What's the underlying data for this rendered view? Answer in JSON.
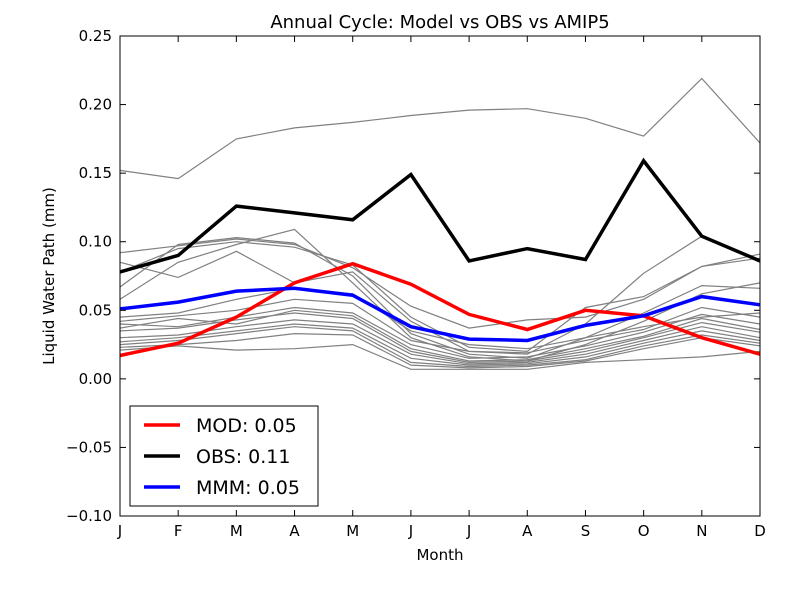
{
  "chart_data": {
    "type": "line",
    "title": "Annual Cycle: Model vs OBS vs AMIP5",
    "xlabel": "Month",
    "ylabel": "Liquid Water Path (mm)",
    "categories": [
      "J",
      "F",
      "M",
      "A",
      "M",
      "J",
      "J",
      "A",
      "S",
      "O",
      "N",
      "D"
    ],
    "ylim": [
      -0.1,
      0.25
    ],
    "yticks": [
      "−0.10",
      "−0.05",
      "0.00",
      "0.05",
      "0.10",
      "0.15",
      "0.20",
      "0.25"
    ],
    "ytick_values": [
      -0.1,
      -0.05,
      0.0,
      0.05,
      0.1,
      0.15,
      0.2,
      0.25
    ],
    "grid": false,
    "legend_position": "lower-left",
    "background_series": [
      {
        "color": "#808080",
        "values": [
          0.152,
          0.146,
          0.175,
          0.183,
          0.187,
          0.192,
          0.196,
          0.197,
          0.19,
          0.177,
          0.219,
          0.172
        ]
      },
      {
        "color": "#808080",
        "values": [
          0.092,
          0.097,
          0.102,
          0.098,
          0.081,
          0.053,
          0.037,
          0.043,
          0.045,
          0.058,
          0.082,
          0.091
        ]
      },
      {
        "color": "#808080",
        "values": [
          0.085,
          0.074,
          0.093,
          0.07,
          0.078,
          0.042,
          0.02,
          0.018,
          0.04,
          0.077,
          0.104,
          0.085
        ]
      },
      {
        "color": "#808080",
        "values": [
          0.078,
          0.095,
          0.1,
          0.096,
          0.083,
          0.045,
          0.023,
          0.02,
          0.052,
          0.06,
          0.082,
          0.088
        ]
      },
      {
        "color": "#808080",
        "values": [
          0.067,
          0.098,
          0.103,
          0.099,
          0.075,
          0.033,
          0.018,
          0.015,
          0.03,
          0.048,
          0.068,
          0.066
        ]
      },
      {
        "color": "#808080",
        "values": [
          0.058,
          0.085,
          0.098,
          0.109,
          0.07,
          0.03,
          0.016,
          0.013,
          0.025,
          0.042,
          0.062,
          0.07
        ]
      },
      {
        "color": "#808080",
        "values": [
          0.045,
          0.048,
          0.058,
          0.066,
          0.062,
          0.035,
          0.025,
          0.022,
          0.03,
          0.038,
          0.045,
          0.048
        ]
      },
      {
        "color": "#808080",
        "values": [
          0.042,
          0.046,
          0.05,
          0.058,
          0.055,
          0.028,
          0.02,
          0.019,
          0.028,
          0.036,
          0.052,
          0.045
        ]
      },
      {
        "color": "#808080",
        "values": [
          0.04,
          0.038,
          0.045,
          0.052,
          0.048,
          0.025,
          0.015,
          0.016,
          0.024,
          0.034,
          0.047,
          0.04
        ]
      },
      {
        "color": "#808080",
        "values": [
          0.037,
          0.044,
          0.04,
          0.05,
          0.046,
          0.022,
          0.013,
          0.014,
          0.022,
          0.031,
          0.044,
          0.036
        ]
      },
      {
        "color": "#808080",
        "values": [
          0.035,
          0.037,
          0.043,
          0.048,
          0.044,
          0.02,
          0.012,
          0.013,
          0.02,
          0.03,
          0.041,
          0.034
        ]
      },
      {
        "color": "#808080",
        "values": [
          0.03,
          0.032,
          0.038,
          0.043,
          0.04,
          0.018,
          0.011,
          0.012,
          0.018,
          0.028,
          0.038,
          0.03
        ]
      },
      {
        "color": "#808080",
        "values": [
          0.027,
          0.03,
          0.035,
          0.04,
          0.037,
          0.015,
          0.01,
          0.011,
          0.016,
          0.026,
          0.035,
          0.028
        ]
      },
      {
        "color": "#808080",
        "values": [
          0.025,
          0.028,
          0.033,
          0.038,
          0.035,
          0.012,
          0.009,
          0.01,
          0.014,
          0.024,
          0.032,
          0.026
        ]
      },
      {
        "color": "#808080",
        "values": [
          0.023,
          0.025,
          0.028,
          0.033,
          0.032,
          0.01,
          0.008,
          0.009,
          0.013,
          0.022,
          0.03,
          0.024
        ]
      },
      {
        "color": "#808080",
        "values": [
          0.021,
          0.024,
          0.021,
          0.022,
          0.025,
          0.007,
          0.007,
          0.007,
          0.012,
          0.014,
          0.016,
          0.02
        ]
      }
    ],
    "series": [
      {
        "name": "MOD",
        "legend_label": "MOD: 0.05",
        "color": "#ff0000",
        "values": [
          0.017,
          0.026,
          0.045,
          0.07,
          0.084,
          0.069,
          0.047,
          0.036,
          0.05,
          0.046,
          0.03,
          0.018
        ]
      },
      {
        "name": "OBS",
        "legend_label": "OBS: 0.11",
        "color": "#000000",
        "values": [
          0.078,
          0.09,
          0.126,
          0.121,
          0.116,
          0.149,
          0.086,
          0.095,
          0.087,
          0.159,
          0.104,
          0.086
        ]
      },
      {
        "name": "MMM",
        "legend_label": "MMM: 0.05",
        "color": "#0000ff",
        "values": [
          0.051,
          0.056,
          0.064,
          0.066,
          0.061,
          0.038,
          0.029,
          0.028,
          0.039,
          0.046,
          0.06,
          0.054
        ]
      }
    ]
  }
}
